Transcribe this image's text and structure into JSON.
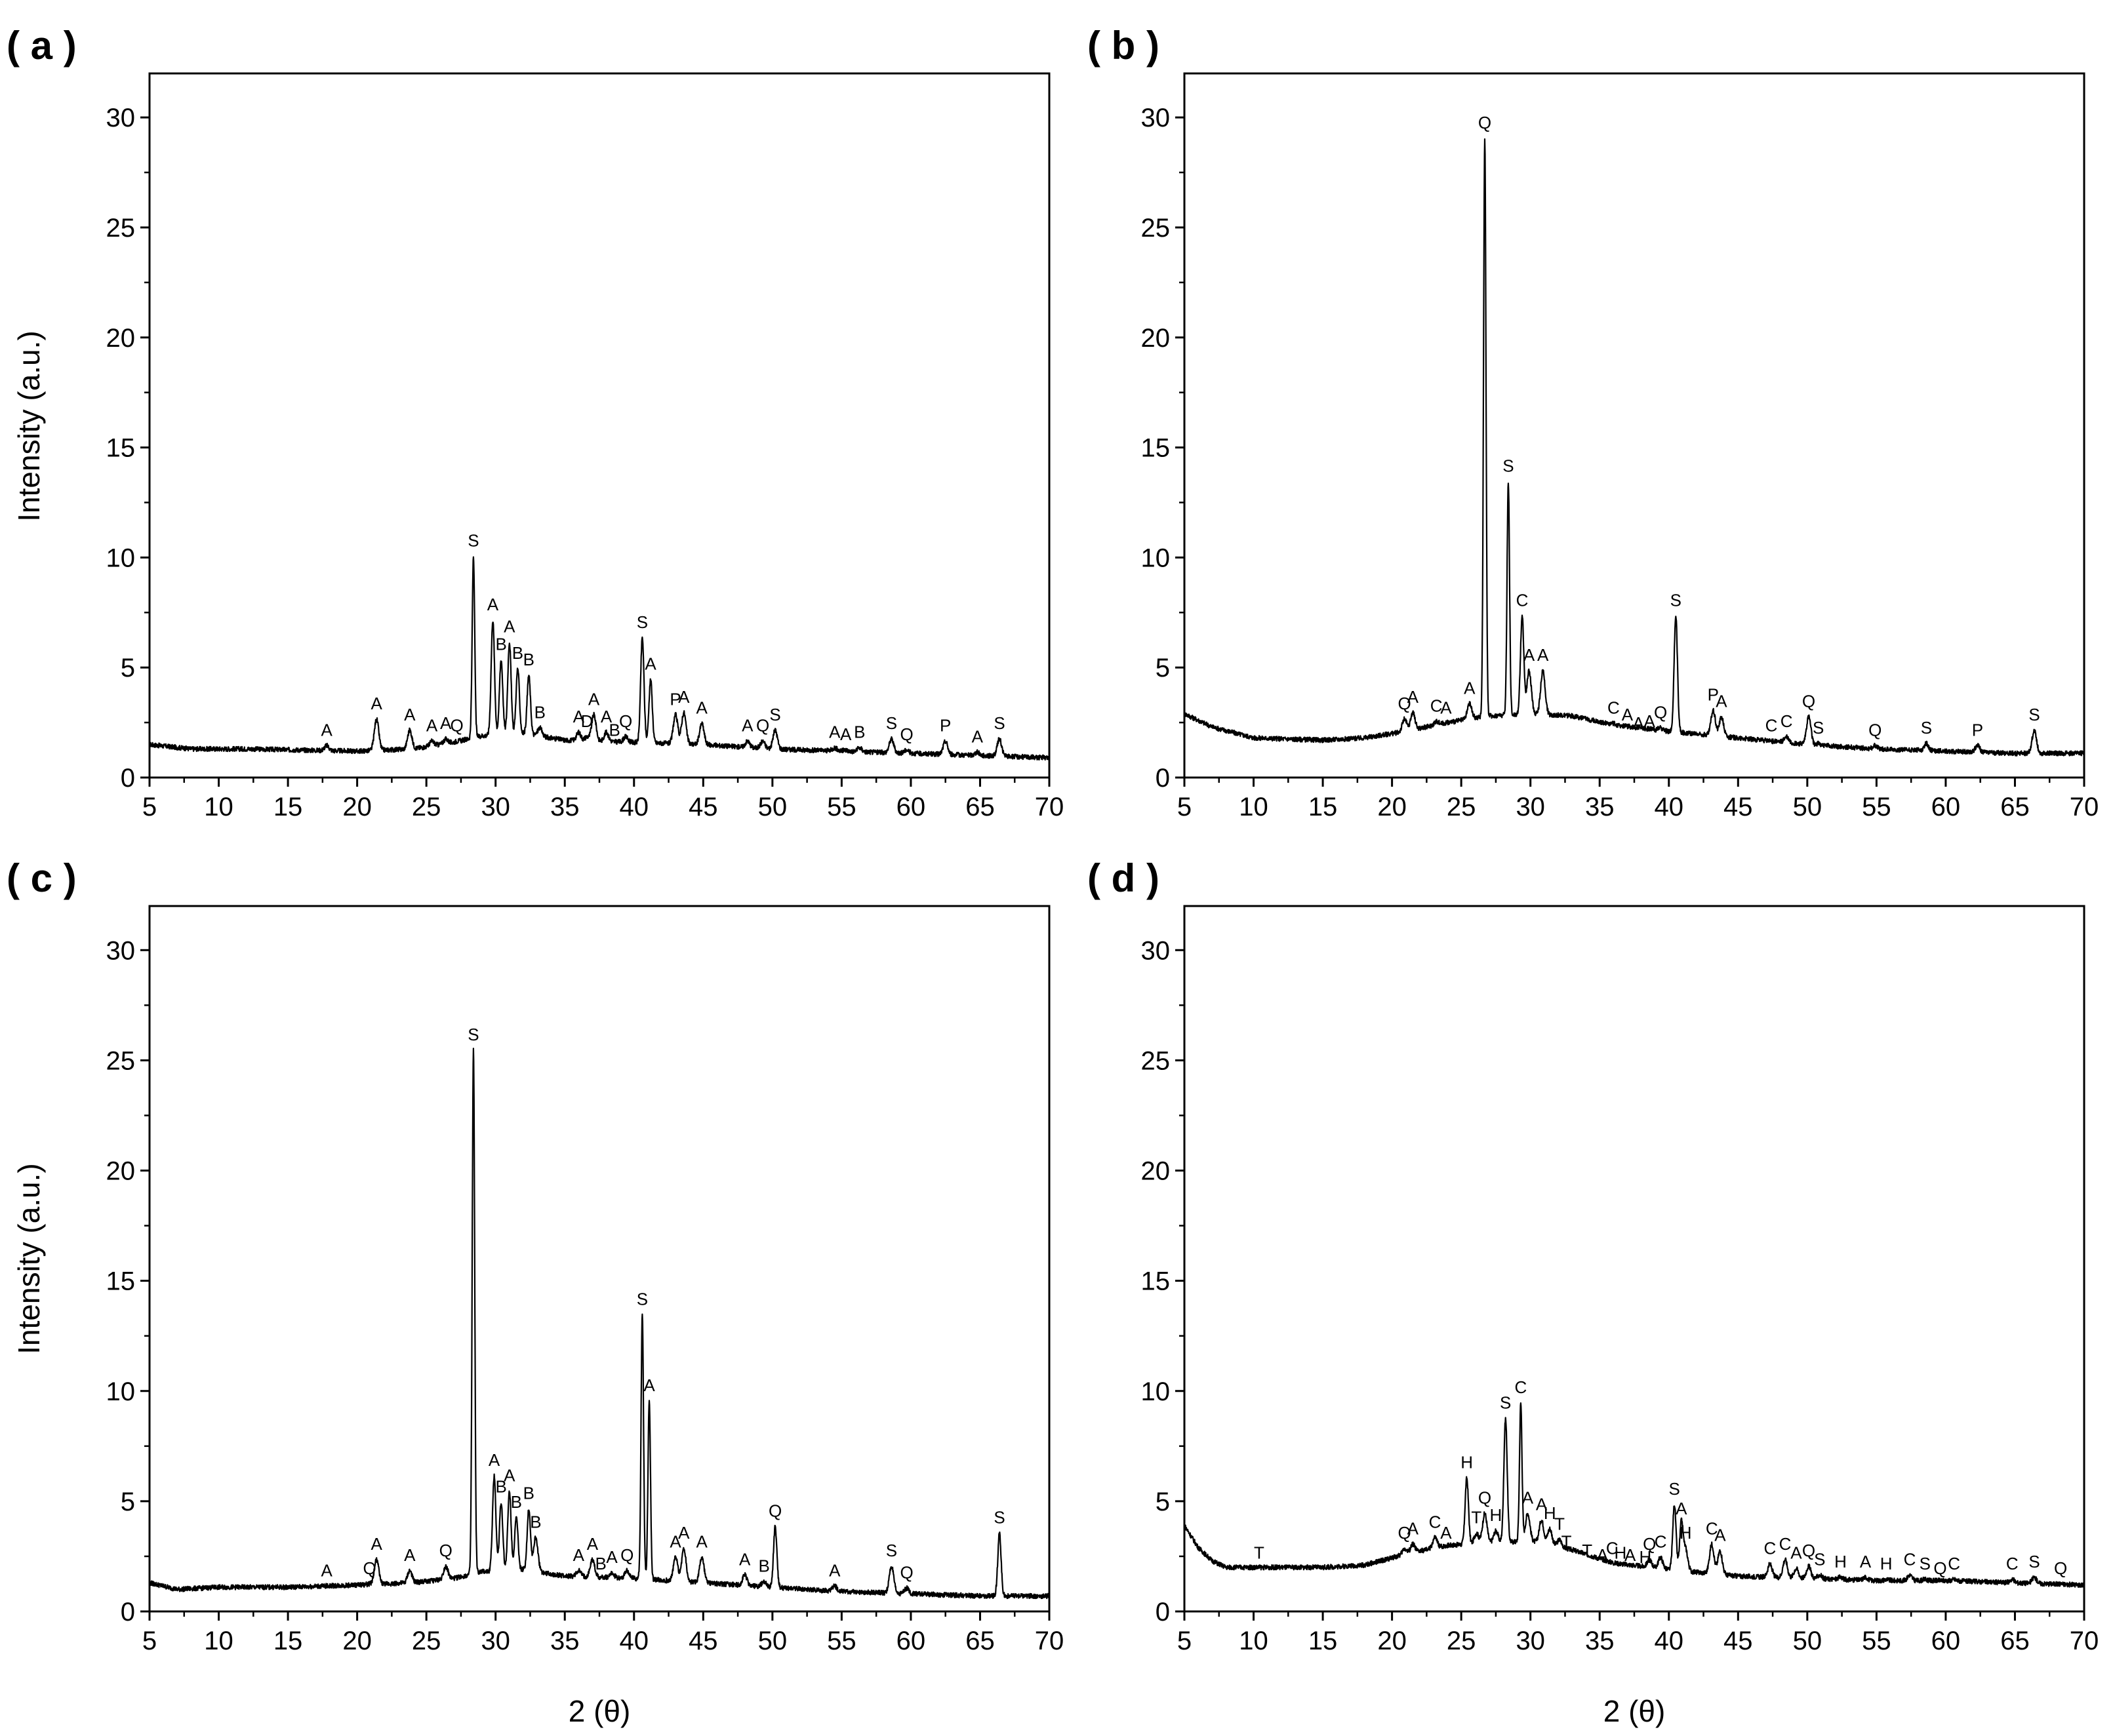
{
  "figure": {
    "xlabel": "2 (θ)",
    "ylabel": "Intensity (a.u.)"
  },
  "chart_data": [
    {
      "type": "line",
      "panel": "a",
      "panel_label": "( a )",
      "xlim": [
        5,
        70
      ],
      "ylim": [
        0,
        32
      ],
      "xticks": [
        5,
        10,
        15,
        20,
        25,
        30,
        35,
        40,
        45,
        50,
        55,
        60,
        65,
        70
      ],
      "yticks": [
        0,
        5,
        10,
        15,
        20,
        25,
        30
      ],
      "ylabel": "Intensity (a.u.)",
      "xlabel": "",
      "baseline": [
        [
          5,
          1.5
        ],
        [
          8,
          1.3
        ],
        [
          12,
          1.3
        ],
        [
          20,
          1.2
        ],
        [
          24,
          1.3
        ],
        [
          27,
          1.6
        ],
        [
          29,
          1.9
        ],
        [
          32,
          2.0
        ],
        [
          35,
          1.7
        ],
        [
          40,
          1.6
        ],
        [
          45,
          1.5
        ],
        [
          50,
          1.3
        ],
        [
          55,
          1.2
        ],
        [
          60,
          1.1
        ],
        [
          65,
          1.0
        ],
        [
          70,
          0.9
        ]
      ],
      "peaks": [
        [
          17.8,
          1.6,
          "A"
        ],
        [
          21.4,
          2.8,
          "A"
        ],
        [
          23.8,
          2.3,
          "A"
        ],
        [
          25.4,
          1.8,
          "A"
        ],
        [
          26.4,
          1.9,
          "A"
        ],
        [
          27.2,
          1.8,
          "Q"
        ],
        [
          28.4,
          10.2,
          "S"
        ],
        [
          29.8,
          7.3,
          "A"
        ],
        [
          30.4,
          5.5,
          "B"
        ],
        [
          31.0,
          6.3,
          "A"
        ],
        [
          31.6,
          5.1,
          "B"
        ],
        [
          32.4,
          4.8,
          "B"
        ],
        [
          33.2,
          2.4,
          "B"
        ],
        [
          36.0,
          2.2,
          "A"
        ],
        [
          36.6,
          2.0,
          "D"
        ],
        [
          37.1,
          3.0,
          "A"
        ],
        [
          38.0,
          2.2,
          "A"
        ],
        [
          38.6,
          1.6,
          "B"
        ],
        [
          39.4,
          2.0,
          "Q"
        ],
        [
          40.6,
          6.5,
          "S"
        ],
        [
          41.2,
          4.6,
          "A"
        ],
        [
          43.0,
          3.0,
          "P"
        ],
        [
          43.6,
          3.1,
          "A"
        ],
        [
          44.9,
          2.6,
          "A"
        ],
        [
          48.2,
          1.8,
          "A"
        ],
        [
          49.3,
          1.8,
          "Q"
        ],
        [
          50.2,
          2.3,
          "S"
        ],
        [
          54.5,
          1.5,
          "A"
        ],
        [
          55.3,
          1.4,
          "A"
        ],
        [
          56.3,
          1.5,
          "B"
        ],
        [
          58.6,
          1.9,
          "S"
        ],
        [
          59.7,
          1.4,
          "Q"
        ],
        [
          62.5,
          1.8,
          "P"
        ],
        [
          64.8,
          1.3,
          "A"
        ],
        [
          66.4,
          1.9,
          "S"
        ]
      ]
    },
    {
      "type": "line",
      "panel": "b",
      "panel_label": "( b )",
      "xlim": [
        5,
        70
      ],
      "ylim": [
        0,
        32
      ],
      "xticks": [
        5,
        10,
        15,
        20,
        25,
        30,
        35,
        40,
        45,
        50,
        55,
        60,
        65,
        70
      ],
      "yticks": [
        0,
        5,
        10,
        15,
        20,
        25,
        30
      ],
      "ylabel": "",
      "xlabel": "",
      "baseline": [
        [
          5,
          2.9
        ],
        [
          7,
          2.3
        ],
        [
          10,
          1.8
        ],
        [
          15,
          1.7
        ],
        [
          18,
          1.8
        ],
        [
          21,
          2.1
        ],
        [
          24,
          2.5
        ],
        [
          27,
          2.8
        ],
        [
          30,
          2.9
        ],
        [
          33,
          2.8
        ],
        [
          36,
          2.4
        ],
        [
          40,
          2.1
        ],
        [
          45,
          1.8
        ],
        [
          50,
          1.5
        ],
        [
          55,
          1.3
        ],
        [
          60,
          1.2
        ],
        [
          65,
          1.1
        ],
        [
          70,
          1.1
        ]
      ],
      "peaks": [
        [
          20.9,
          2.8,
          "Q"
        ],
        [
          21.5,
          3.1,
          "A"
        ],
        [
          23.2,
          2.7,
          "C"
        ],
        [
          23.9,
          2.6,
          "A"
        ],
        [
          25.6,
          3.5,
          "A"
        ],
        [
          26.7,
          29.2,
          "Q"
        ],
        [
          28.4,
          13.6,
          "S"
        ],
        [
          29.4,
          7.5,
          "C"
        ],
        [
          29.9,
          5.0,
          "A"
        ],
        [
          30.9,
          5.0,
          "A"
        ],
        [
          36.0,
          2.6,
          "C"
        ],
        [
          37.0,
          2.3,
          "A"
        ],
        [
          37.8,
          1.9,
          "A"
        ],
        [
          38.6,
          2.0,
          "A"
        ],
        [
          39.4,
          2.4,
          "Q"
        ],
        [
          40.5,
          7.5,
          "S"
        ],
        [
          43.2,
          3.2,
          "P"
        ],
        [
          43.8,
          2.9,
          "A"
        ],
        [
          47.4,
          1.8,
          "C"
        ],
        [
          48.5,
          2.0,
          "C"
        ],
        [
          50.1,
          2.9,
          "Q"
        ],
        [
          50.8,
          1.7,
          "S"
        ],
        [
          54.9,
          1.6,
          "Q"
        ],
        [
          58.6,
          1.7,
          "S"
        ],
        [
          62.3,
          1.6,
          "P"
        ],
        [
          66.4,
          2.3,
          "S"
        ]
      ]
    },
    {
      "type": "line",
      "panel": "c",
      "panel_label": "( c )",
      "xlim": [
        5,
        70
      ],
      "ylim": [
        0,
        32
      ],
      "xticks": [
        5,
        10,
        15,
        20,
        25,
        30,
        35,
        40,
        45,
        50,
        55,
        60,
        65,
        70
      ],
      "yticks": [
        0,
        5,
        10,
        15,
        20,
        25,
        30
      ],
      "ylabel": "Intensity (a.u.)",
      "xlabel": "2 (θ)",
      "baseline": [
        [
          5,
          1.3
        ],
        [
          7,
          1.0
        ],
        [
          10,
          1.1
        ],
        [
          15,
          1.1
        ],
        [
          20,
          1.2
        ],
        [
          24,
          1.3
        ],
        [
          27,
          1.5
        ],
        [
          29,
          1.8
        ],
        [
          32,
          1.9
        ],
        [
          35,
          1.6
        ],
        [
          40,
          1.5
        ],
        [
          45,
          1.3
        ],
        [
          50,
          1.1
        ],
        [
          55,
          0.9
        ],
        [
          60,
          0.8
        ],
        [
          65,
          0.7
        ],
        [
          70,
          0.7
        ]
      ],
      "peaks": [
        [
          17.8,
          1.3,
          "A"
        ],
        [
          20.9,
          1.4,
          "Q"
        ],
        [
          21.4,
          2.5,
          "A"
        ],
        [
          23.8,
          2.0,
          "A"
        ],
        [
          26.4,
          2.2,
          "Q"
        ],
        [
          28.4,
          25.6,
          "S"
        ],
        [
          29.9,
          6.3,
          "A"
        ],
        [
          30.4,
          5.1,
          "B"
        ],
        [
          31.0,
          5.6,
          "A"
        ],
        [
          31.5,
          4.4,
          "B"
        ],
        [
          32.4,
          4.8,
          "B"
        ],
        [
          32.9,
          3.5,
          "B"
        ],
        [
          36.0,
          2.0,
          "A"
        ],
        [
          37.0,
          2.5,
          "A"
        ],
        [
          37.6,
          1.6,
          "B"
        ],
        [
          38.4,
          1.9,
          "A"
        ],
        [
          39.5,
          2.0,
          "Q"
        ],
        [
          40.6,
          13.6,
          "S"
        ],
        [
          41.1,
          9.7,
          "A"
        ],
        [
          43.0,
          2.6,
          "A"
        ],
        [
          43.6,
          3.0,
          "A"
        ],
        [
          44.9,
          2.6,
          "A"
        ],
        [
          48.0,
          1.8,
          "A"
        ],
        [
          49.4,
          1.5,
          "B"
        ],
        [
          50.2,
          4.0,
          "Q"
        ],
        [
          54.5,
          1.3,
          "A"
        ],
        [
          58.6,
          2.2,
          "S"
        ],
        [
          59.7,
          1.2,
          "Q"
        ],
        [
          66.4,
          3.7,
          "S"
        ]
      ]
    },
    {
      "type": "line",
      "panel": "d",
      "panel_label": "( d )",
      "xlim": [
        5,
        70
      ],
      "ylim": [
        0,
        32
      ],
      "xticks": [
        5,
        10,
        15,
        20,
        25,
        30,
        35,
        40,
        45,
        50,
        55,
        60,
        65,
        70
      ],
      "yticks": [
        0,
        5,
        10,
        15,
        20,
        25,
        30
      ],
      "ylabel": "",
      "xlabel": "2 (θ)",
      "baseline": [
        [
          5,
          3.9
        ],
        [
          6,
          2.9
        ],
        [
          7,
          2.3
        ],
        [
          8,
          2.0
        ],
        [
          10,
          2.0
        ],
        [
          15,
          2.0
        ],
        [
          18,
          2.1
        ],
        [
          21,
          2.6
        ],
        [
          24,
          3.0
        ],
        [
          27,
          3.1
        ],
        [
          30,
          3.2
        ],
        [
          33,
          2.8
        ],
        [
          36,
          2.2
        ],
        [
          40,
          1.9
        ],
        [
          45,
          1.6
        ],
        [
          50,
          1.5
        ],
        [
          55,
          1.4
        ],
        [
          60,
          1.4
        ],
        [
          65,
          1.3
        ],
        [
          70,
          1.2
        ]
      ],
      "peaks": [
        [
          10.4,
          2.1,
          "T"
        ],
        [
          20.9,
          3.0,
          "Q"
        ],
        [
          21.5,
          3.2,
          "A"
        ],
        [
          23.1,
          3.5,
          "C"
        ],
        [
          23.9,
          3.0,
          "A"
        ],
        [
          25.4,
          6.2,
          "H"
        ],
        [
          26.1,
          3.7,
          "T"
        ],
        [
          26.7,
          4.6,
          "Q"
        ],
        [
          27.5,
          3.8,
          "H"
        ],
        [
          28.2,
          8.9,
          "S"
        ],
        [
          29.3,
          9.6,
          "C"
        ],
        [
          29.8,
          4.6,
          "A"
        ],
        [
          30.8,
          4.3,
          "A"
        ],
        [
          31.4,
          3.9,
          "H"
        ],
        [
          32.1,
          3.4,
          "T"
        ],
        [
          32.6,
          2.6,
          "T"
        ],
        [
          34.1,
          2.2,
          "T"
        ],
        [
          35.2,
          2.0,
          "A"
        ],
        [
          35.9,
          2.3,
          "C"
        ],
        [
          36.5,
          2.1,
          "H"
        ],
        [
          37.2,
          2.0,
          "A"
        ],
        [
          38.3,
          1.9,
          "H"
        ],
        [
          38.6,
          2.5,
          "Q"
        ],
        [
          39.4,
          2.6,
          "C"
        ],
        [
          40.4,
          5.0,
          "S"
        ],
        [
          40.9,
          4.1,
          "A"
        ],
        [
          41.2,
          3.0,
          "H"
        ],
        [
          43.1,
          3.2,
          "C"
        ],
        [
          43.7,
          2.9,
          "A"
        ],
        [
          47.3,
          2.3,
          "C"
        ],
        [
          48.4,
          2.5,
          "C"
        ],
        [
          49.2,
          2.1,
          "A"
        ],
        [
          50.1,
          2.2,
          "Q"
        ],
        [
          50.9,
          1.8,
          "S"
        ],
        [
          52.4,
          1.7,
          "H"
        ],
        [
          54.2,
          1.7,
          "A"
        ],
        [
          55.7,
          1.6,
          "H"
        ],
        [
          57.4,
          1.8,
          "C"
        ],
        [
          58.5,
          1.6,
          "S"
        ],
        [
          59.6,
          1.4,
          "Q"
        ],
        [
          60.6,
          1.6,
          "C"
        ],
        [
          64.8,
          1.6,
          "C"
        ],
        [
          66.4,
          1.7,
          "S"
        ],
        [
          68.3,
          1.4,
          "Q"
        ]
      ]
    }
  ]
}
